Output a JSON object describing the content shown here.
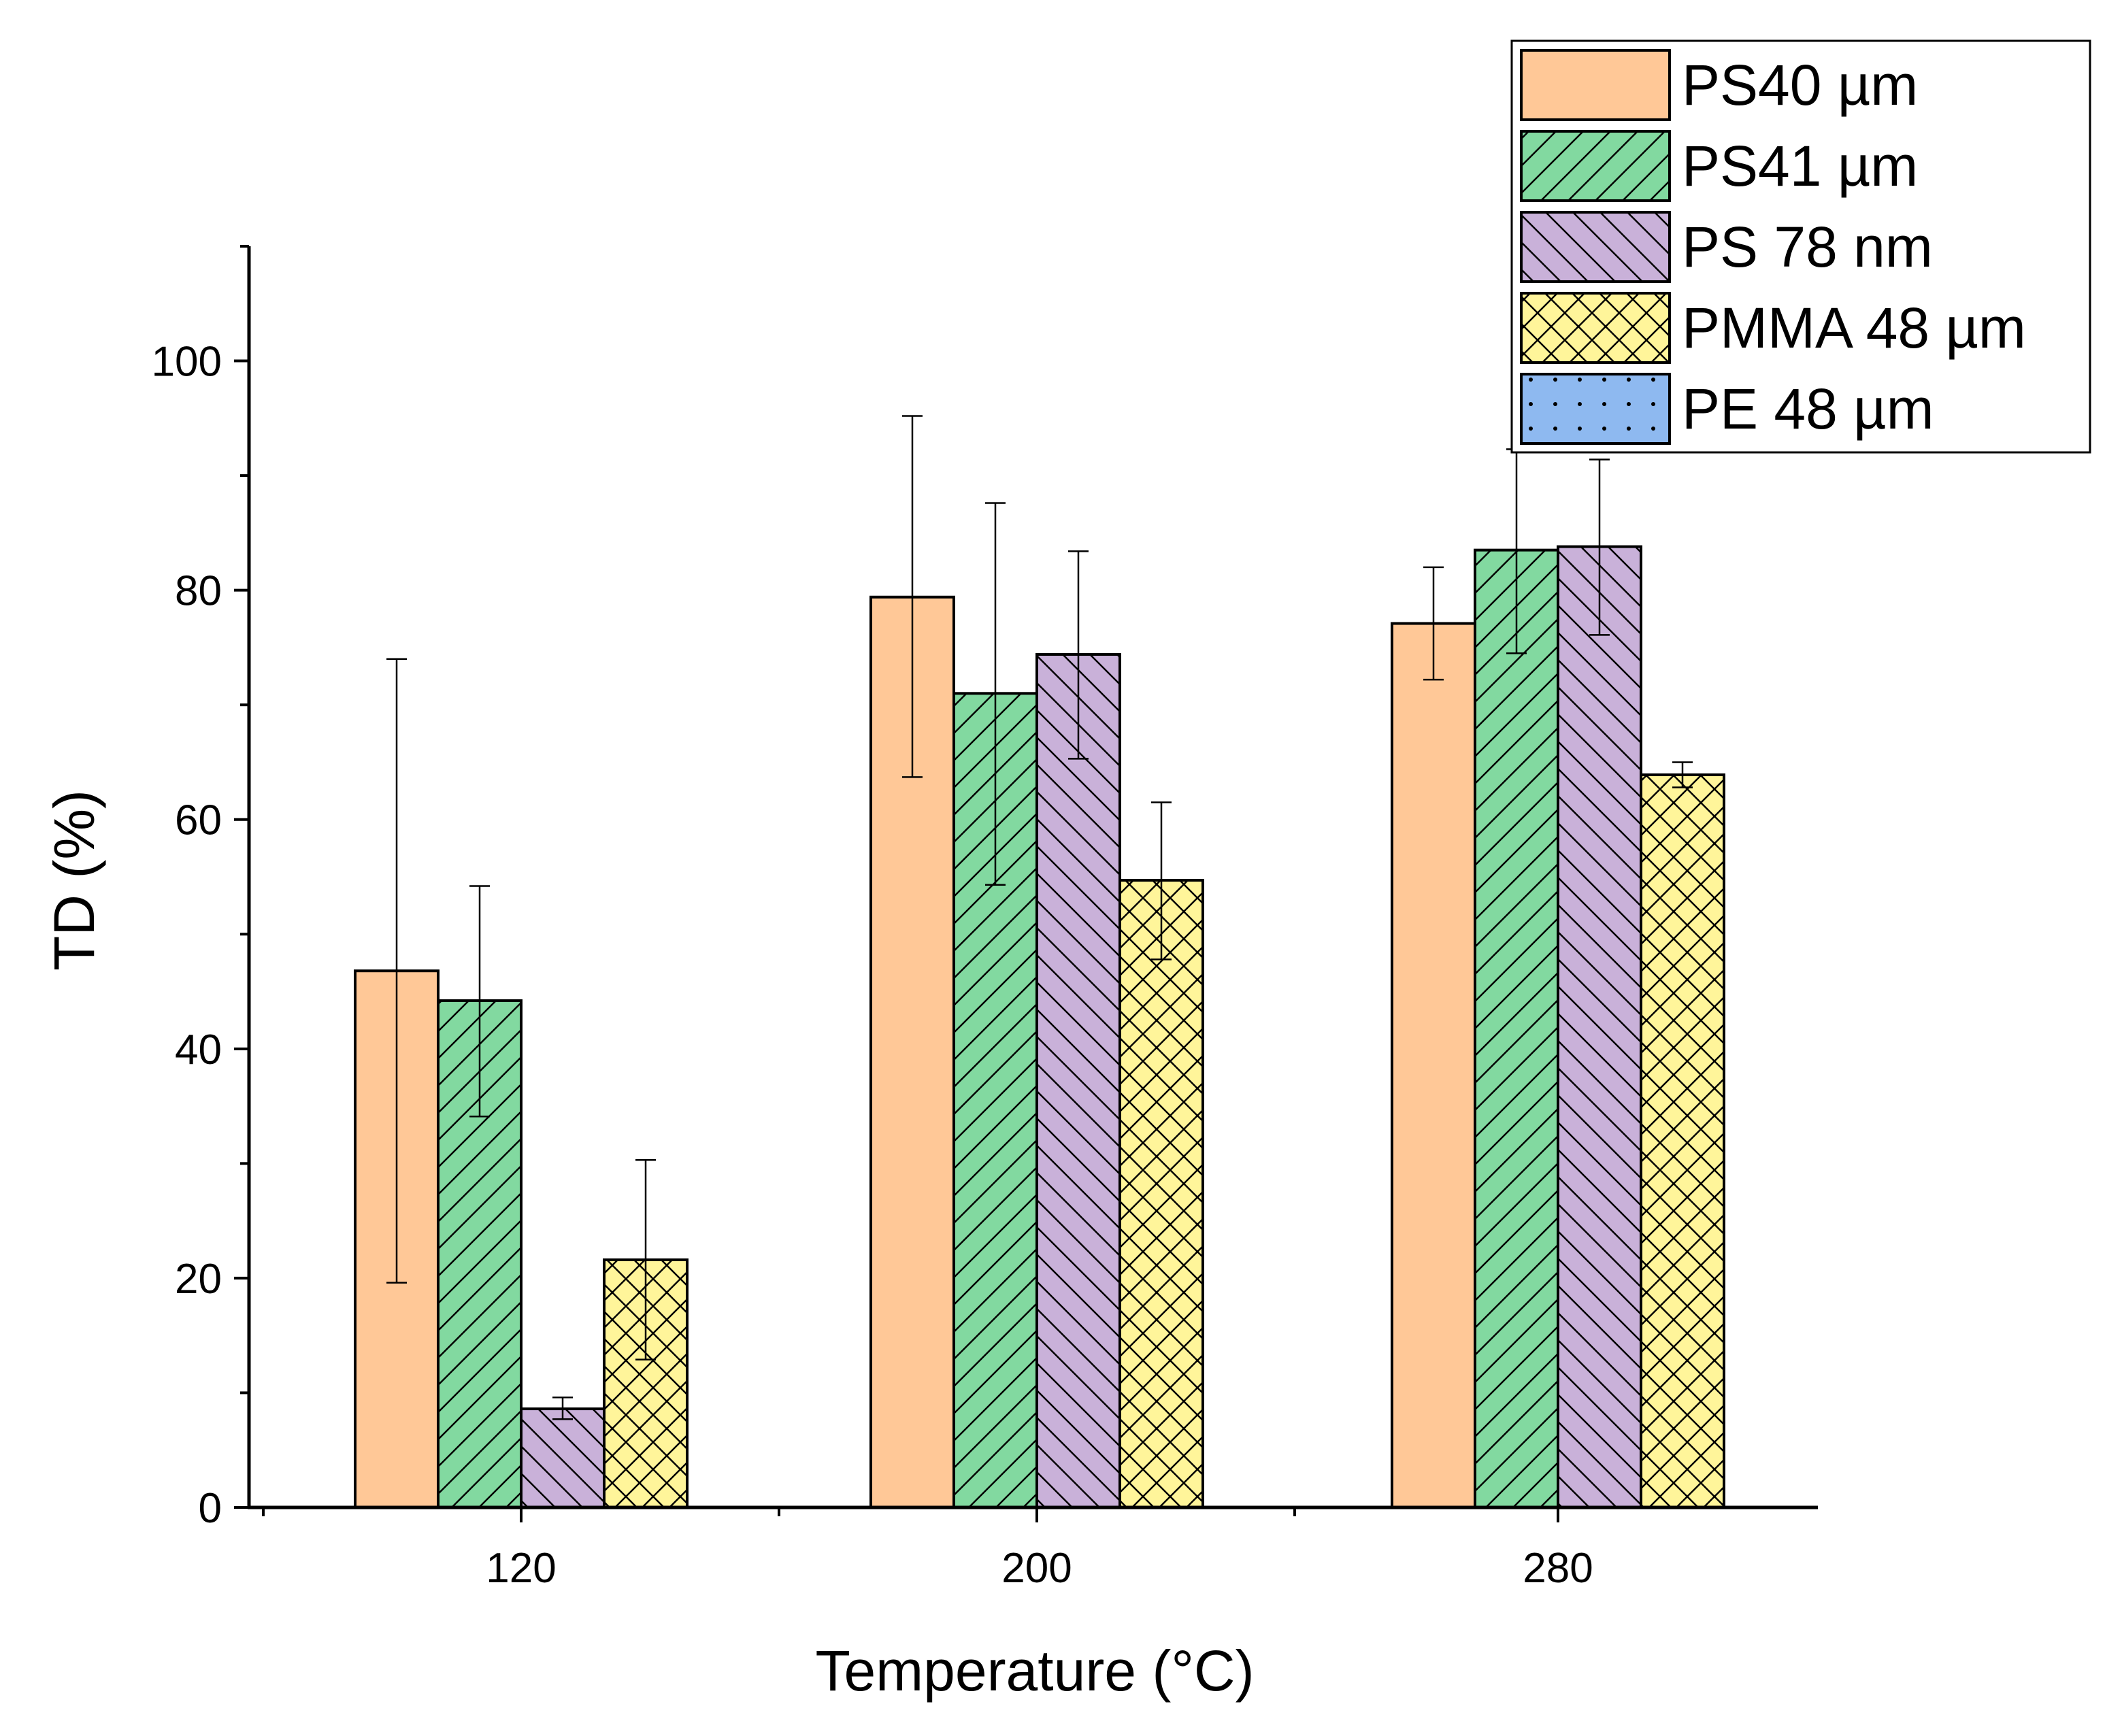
{
  "chart_data": {
    "type": "bar",
    "title": "",
    "xlabel": "Temperature (°C)",
    "ylabel": "TD (%)",
    "ylim": [
      0,
      110
    ],
    "yticks": [
      0,
      20,
      40,
      60,
      80,
      100
    ],
    "y_minor_step": 10,
    "categories": [
      "120",
      "200",
      "280"
    ],
    "legend_position": "top-right",
    "series": [
      {
        "name": "PS40 µm",
        "color": "#FFC897",
        "pattern": "none",
        "values": [
          46.8,
          79.4,
          77.1
        ],
        "err_low": [
          19.6,
          63.7,
          72.2
        ],
        "err_high": [
          74.0,
          95.2,
          82.0
        ]
      },
      {
        "name": "PS41 µm",
        "color": "#82D9A0",
        "pattern": "forward-diagonal",
        "values": [
          44.2,
          71.0,
          83.5
        ],
        "err_low": [
          34.1,
          54.3,
          74.5
        ],
        "err_high": [
          54.2,
          87.6,
          92.3
        ]
      },
      {
        "name": "PS 78 nm",
        "color": "#C9B1D9",
        "pattern": "back-diagonal",
        "values": [
          8.6,
          74.4,
          83.8
        ],
        "err_low": [
          7.7,
          65.3,
          76.1
        ],
        "err_high": [
          9.6,
          83.4,
          91.4
        ]
      },
      {
        "name": "PMMA 48 µm",
        "color": "#FFF59A",
        "pattern": "crosshatch",
        "values": [
          21.6,
          54.7,
          63.9
        ],
        "err_low": [
          12.9,
          47.8,
          62.8
        ],
        "err_high": [
          30.3,
          61.5,
          65.0
        ]
      },
      {
        "name": "PE 48 µm",
        "color": "#8EB9F0",
        "pattern": "dots",
        "values": [
          null,
          null,
          null
        ],
        "err_low": [
          null,
          null,
          null
        ],
        "err_high": [
          null,
          null,
          null
        ]
      }
    ]
  }
}
